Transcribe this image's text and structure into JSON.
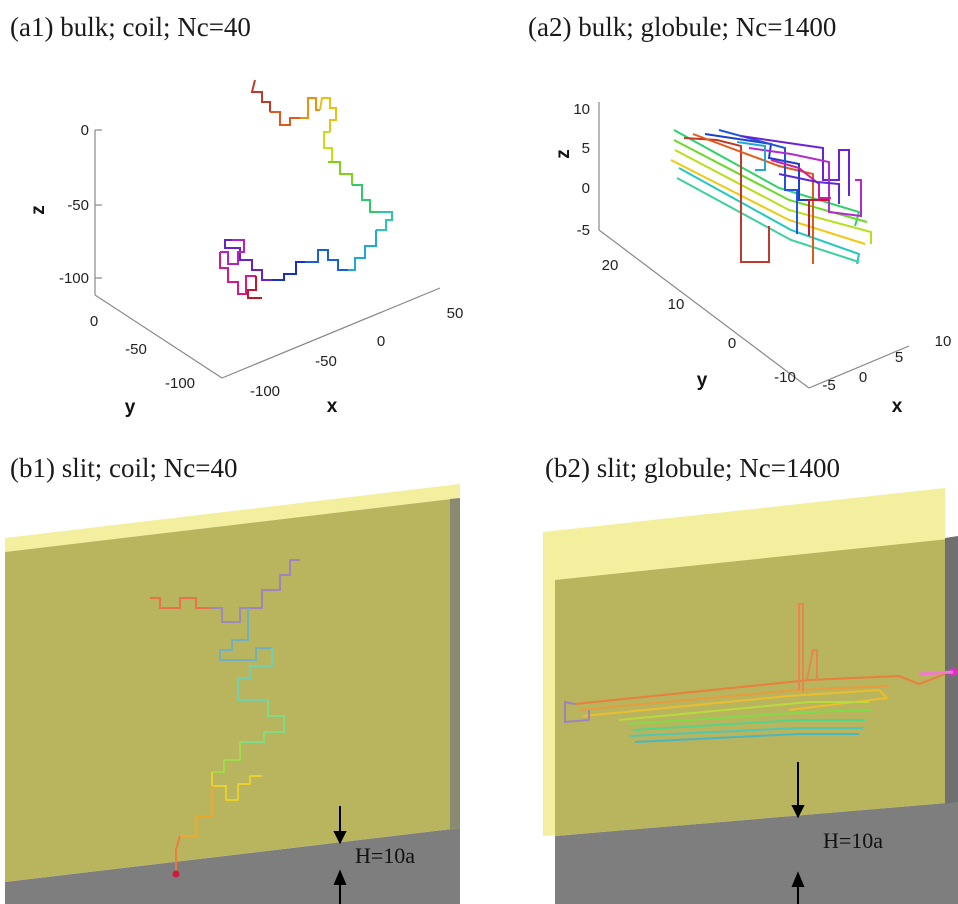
{
  "figure": {
    "panels": [
      {
        "id": "a1",
        "title": "(a1) bulk;  coil; Nc=40",
        "type": "3d-line",
        "axes": {
          "x": {
            "label": "x",
            "ticks": [
              "-100",
              "-50",
              "0",
              "50"
            ]
          },
          "y": {
            "label": "y",
            "ticks": [
              "0",
              "-50",
              "-100"
            ]
          },
          "z": {
            "label": "z",
            "ticks": [
              "0",
              "-50",
              "-100"
            ]
          }
        }
      },
      {
        "id": "a2",
        "title": "(a2) bulk; globule; Nc=1400",
        "type": "3d-line",
        "axes": {
          "x": {
            "label": "x",
            "ticks": [
              "-5",
              "0",
              "5",
              "10"
            ]
          },
          "y": {
            "label": "y",
            "ticks": [
              "20",
              "10",
              "0",
              "-10"
            ]
          },
          "z": {
            "label": "z",
            "ticks": [
              "10",
              "5",
              "0",
              "-5"
            ]
          }
        }
      },
      {
        "id": "b1",
        "title": "(b1) slit; coil; Nc=40",
        "type": "slit-render",
        "gap_label": "H=10a",
        "colors": {
          "top_plate": "#f3ef9f",
          "wall": "#b9b45e",
          "bottom_plate": "#7e7e7e"
        }
      },
      {
        "id": "b2",
        "title": "(b2) slit; globule; Nc=1400",
        "type": "slit-render",
        "gap_label": "H=10a",
        "colors": {
          "top_plate": "#f3ef9f",
          "wall": "#b9b45e",
          "bottom_plate": "#7e7e7e"
        }
      }
    ]
  }
}
